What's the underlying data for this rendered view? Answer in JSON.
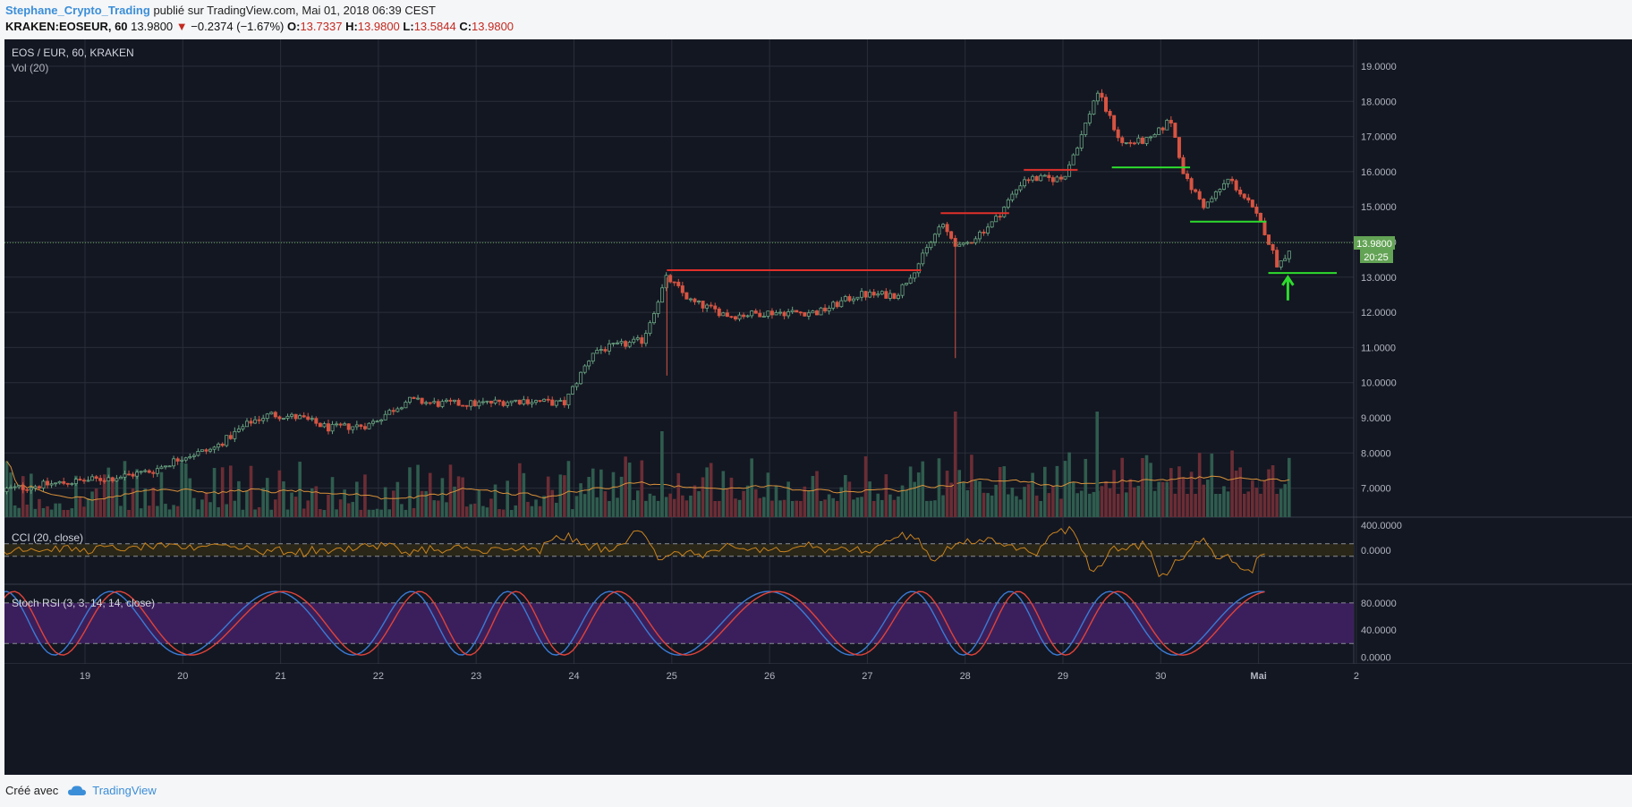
{
  "header": {
    "author": "Stephane_Crypto_Trading",
    "published_text": "publié sur TradingView.com, Mai 01, 2018 06:39 CEST",
    "symbol": "KRAKEN:EOSEUR, 60",
    "last": "13.9800",
    "change": "−0.2374 (−1.67%)",
    "open_label": "O:",
    "open": "13.7337",
    "high_label": "H:",
    "high": "13.9800",
    "low_label": "L:",
    "low": "13.5844",
    "close_label": "C:",
    "close": "13.9800"
  },
  "colors": {
    "background": "#131722",
    "up": "#6ba583",
    "down": "#d75442",
    "grid": "#2a2e39",
    "cci_line": "#c8821e",
    "stoch_k": "#3a7bd5",
    "stoch_d": "#e0433a",
    "stoch_band": "#3b1f5c",
    "accent_label": "#63a355"
  },
  "chart_data": [
    {
      "type": "candlestick",
      "title": "EOS / EUR, 60, KRAKEN",
      "volume_label": "Vol (20)",
      "x_ticks": [
        "19",
        "20",
        "21",
        "22",
        "23",
        "24",
        "25",
        "26",
        "27",
        "28",
        "29",
        "30",
        "Mai",
        "2"
      ],
      "y_ticks": [
        "19.0000",
        "18.0000",
        "17.0000",
        "16.0000",
        "15.0000",
        "14.0000",
        "13.0000",
        "12.0000",
        "11.0000",
        "10.0000",
        "9.0000",
        "8.0000",
        "7.0000"
      ],
      "ylim": [
        6.2,
        19.7
      ],
      "price_anchors": [
        [
          18.0,
          6.9
        ],
        [
          18.6,
          7.1
        ],
        [
          19.3,
          7.3
        ],
        [
          19.7,
          7.5
        ],
        [
          20.0,
          7.9
        ],
        [
          20.3,
          8.1
        ],
        [
          20.7,
          8.9
        ],
        [
          20.9,
          9.1
        ],
        [
          21.2,
          9.0
        ],
        [
          21.5,
          8.7
        ],
        [
          21.9,
          8.8
        ],
        [
          22.3,
          9.5
        ],
        [
          22.6,
          9.4
        ],
        [
          23.0,
          9.4
        ],
        [
          23.5,
          9.5
        ],
        [
          23.9,
          9.4
        ],
        [
          24.2,
          10.9
        ],
        [
          24.7,
          11.2
        ],
        [
          24.95,
          13.0
        ],
        [
          25.2,
          12.3
        ],
        [
          25.6,
          11.9
        ],
        [
          26.0,
          12.0
        ],
        [
          26.5,
          12.0
        ],
        [
          26.9,
          12.5
        ],
        [
          27.3,
          12.5
        ],
        [
          27.55,
          13.5
        ],
        [
          27.75,
          14.5
        ],
        [
          27.95,
          13.8
        ],
        [
          28.3,
          14.6
        ],
        [
          28.6,
          15.8
        ],
        [
          29.0,
          15.8
        ],
        [
          29.2,
          17.1
        ],
        [
          29.35,
          18.3
        ],
        [
          29.6,
          16.8
        ],
        [
          29.9,
          16.9
        ],
        [
          30.1,
          17.5
        ],
        [
          30.25,
          15.8
        ],
        [
          30.45,
          15.0
        ],
        [
          30.7,
          15.8
        ],
        [
          30.9,
          15.1
        ],
        [
          31.05,
          14.4
        ],
        [
          31.2,
          13.3
        ],
        [
          31.35,
          13.98
        ]
      ],
      "horizontal_levels": [
        {
          "color": "#e0302a",
          "y": 13.2,
          "x_start": 24.95,
          "x_end": 27.55
        },
        {
          "color": "#e0302a",
          "y": 14.82,
          "x_start": 27.75,
          "x_end": 28.45
        },
        {
          "color": "#e0302a",
          "y": 16.05,
          "x_start": 28.6,
          "x_end": 29.15
        },
        {
          "color": "#2edc2e",
          "y": 16.12,
          "x_start": 29.5,
          "x_end": 30.3
        },
        {
          "color": "#2edc2e",
          "y": 14.58,
          "x_start": 30.3,
          "x_end": 31.08
        },
        {
          "color": "#2edc2e",
          "y": 13.12,
          "x_start": 31.1,
          "x_end": 31.8
        }
      ],
      "arrow": {
        "color": "#2edc2e",
        "x": 31.3,
        "y_tip": 13.0
      },
      "last_price": "13.9800",
      "countdown": "20:25"
    },
    {
      "type": "line",
      "title": "CCI (20, close)",
      "y_ticks": [
        "400.0000",
        "0.0000"
      ],
      "ylim": [
        -550,
        500
      ],
      "band": [
        -100,
        100
      ]
    },
    {
      "type": "line",
      "title": "Stoch RSI (3, 3, 14, 14, close)",
      "y_ticks": [
        "80.0000",
        "40.0000",
        "0.0000"
      ],
      "ylim": [
        -10,
        105
      ],
      "band": [
        20,
        80
      ]
    }
  ],
  "footer": {
    "created_with": "Créé avec",
    "brand": "TradingView"
  }
}
